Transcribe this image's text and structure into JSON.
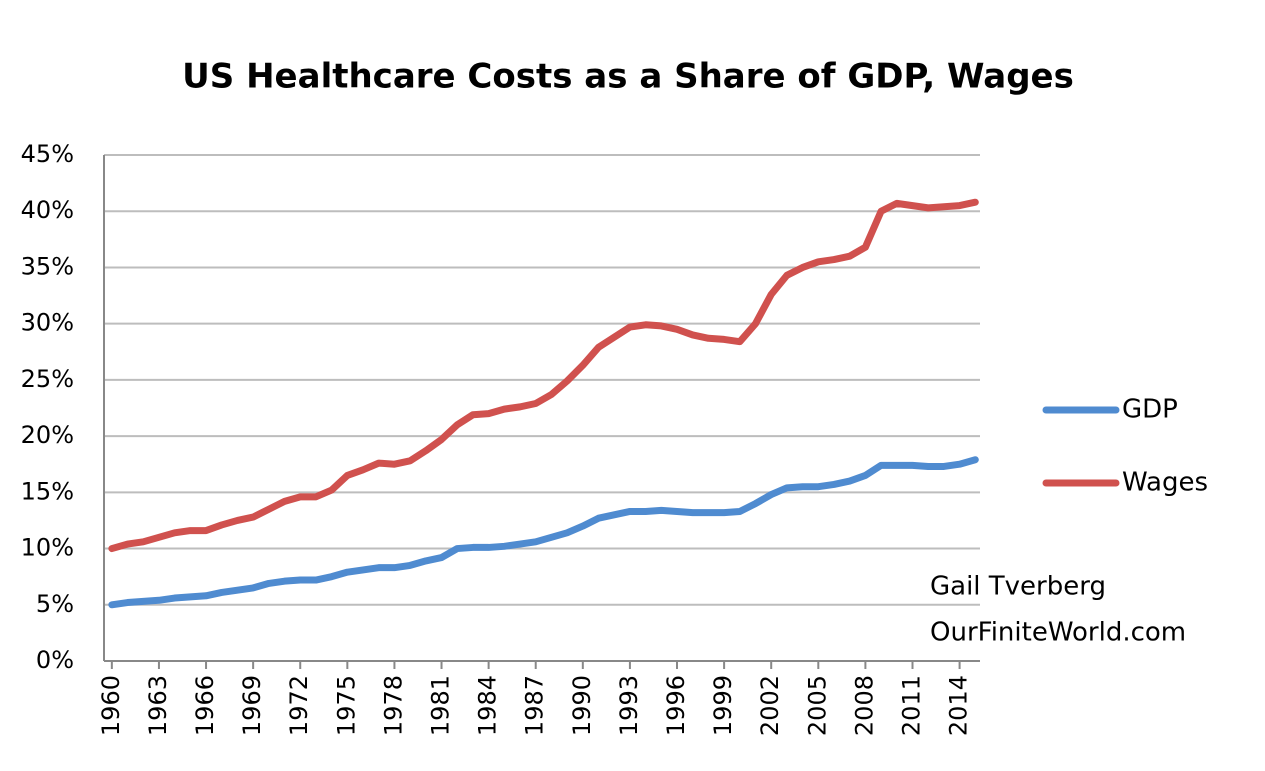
{
  "chart_data": {
    "type": "line",
    "title": "US Healthcare Costs as a Share of GDP, Wages",
    "x": [
      1960,
      1961,
      1962,
      1963,
      1964,
      1965,
      1966,
      1967,
      1968,
      1969,
      1970,
      1971,
      1972,
      1973,
      1974,
      1975,
      1976,
      1977,
      1978,
      1979,
      1980,
      1981,
      1982,
      1983,
      1984,
      1985,
      1986,
      1987,
      1988,
      1989,
      1990,
      1991,
      1992,
      1993,
      1994,
      1995,
      1996,
      1997,
      1998,
      1999,
      2000,
      2001,
      2002,
      2003,
      2004,
      2005,
      2006,
      2007,
      2008,
      2009,
      2010,
      2011,
      2012,
      2013,
      2014,
      2015
    ],
    "series": [
      {
        "name": "GDP",
        "color": "#4f8bd0",
        "values": [
          5.0,
          5.2,
          5.3,
          5.4,
          5.6,
          5.7,
          5.8,
          6.1,
          6.3,
          6.5,
          6.9,
          7.1,
          7.2,
          7.2,
          7.5,
          7.9,
          8.1,
          8.3,
          8.3,
          8.5,
          8.9,
          9.2,
          10.0,
          10.1,
          10.1,
          10.2,
          10.4,
          10.6,
          11.0,
          11.4,
          12.0,
          12.7,
          13.0,
          13.3,
          13.3,
          13.4,
          13.3,
          13.2,
          13.2,
          13.2,
          13.3,
          14.0,
          14.8,
          15.4,
          15.5,
          15.5,
          15.7,
          16.0,
          16.5,
          17.4,
          17.4,
          17.4,
          17.3,
          17.3,
          17.5,
          17.9
        ]
      },
      {
        "name": "Wages",
        "color": "#d0514e",
        "values": [
          10.0,
          10.4,
          10.6,
          11.0,
          11.4,
          11.6,
          11.6,
          12.1,
          12.5,
          12.8,
          13.5,
          14.2,
          14.6,
          14.6,
          15.2,
          16.5,
          17.0,
          17.6,
          17.5,
          17.8,
          18.7,
          19.7,
          21.0,
          21.9,
          22.0,
          22.4,
          22.6,
          22.9,
          23.7,
          24.9,
          26.3,
          27.9,
          28.8,
          29.7,
          29.9,
          29.8,
          29.5,
          29.0,
          28.7,
          28.6,
          28.4,
          30.0,
          32.6,
          34.3,
          35.0,
          35.5,
          35.7,
          36.0,
          36.8,
          40.0,
          40.7,
          40.5,
          40.3,
          40.4,
          40.5,
          40.8
        ]
      }
    ],
    "xlim": [
      1959.5,
      2015.3
    ],
    "xticks": [
      1960,
      1963,
      1966,
      1969,
      1972,
      1975,
      1978,
      1981,
      1984,
      1987,
      1990,
      1993,
      1996,
      1999,
      2002,
      2005,
      2008,
      2011,
      2014
    ],
    "ylim": [
      0,
      45
    ],
    "yticks": [
      {
        "value": 0,
        "label": "0%"
      },
      {
        "value": 5,
        "label": "5%"
      },
      {
        "value": 10,
        "label": "10%"
      },
      {
        "value": 15,
        "label": "15%"
      },
      {
        "value": 20,
        "label": "20%"
      },
      {
        "value": 25,
        "label": "25%"
      },
      {
        "value": 30,
        "label": "30%"
      },
      {
        "value": 35,
        "label": "35%"
      },
      {
        "value": 40,
        "label": "40%"
      },
      {
        "value": 45,
        "label": "45%"
      }
    ],
    "grid": true,
    "legend": "right",
    "annotations": [
      "Gail Tverberg",
      "OurFiniteWorld.com"
    ]
  }
}
